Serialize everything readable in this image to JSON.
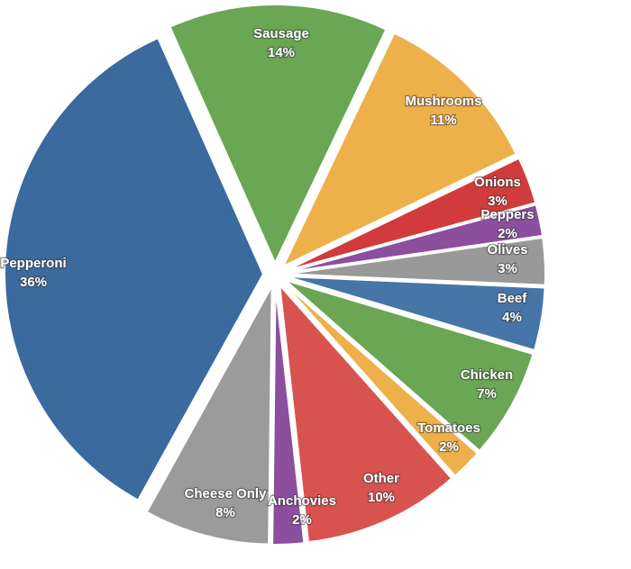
{
  "chart_data": {
    "type": "pie",
    "title": "",
    "exploded": true,
    "slices": [
      {
        "label": "Sausage",
        "value": 14,
        "value_label": "14%",
        "color": "#6aa653"
      },
      {
        "label": "Mushrooms",
        "value": 11,
        "value_label": "11%",
        "color": "#edb04b"
      },
      {
        "label": "Onions",
        "value": 3,
        "value_label": "3%",
        "color": "#d13b3b"
      },
      {
        "label": "Peppers",
        "value": 2,
        "value_label": "2%",
        "color": "#8b4f9e"
      },
      {
        "label": "Olives",
        "value": 3,
        "value_label": "3%",
        "color": "#999999"
      },
      {
        "label": "Beef",
        "value": 4,
        "value_label": "4%",
        "color": "#4675a8"
      },
      {
        "label": "Chicken",
        "value": 7,
        "value_label": "7%",
        "color": "#6aa653"
      },
      {
        "label": "Tomatoes",
        "value": 2,
        "value_label": "2%",
        "color": "#edb04b"
      },
      {
        "label": "Other",
        "value": 10,
        "value_label": "10%",
        "color": "#d85350"
      },
      {
        "label": "Anchovies",
        "value": 2,
        "value_label": "2%",
        "color": "#8b4f9e"
      },
      {
        "label": "Cheese Only",
        "value": 8,
        "value_label": "8%",
        "color": "#9b9b9b"
      },
      {
        "label": "Pepperoni",
        "value": 36,
        "value_label": "36%",
        "color": "#3a6a9e"
      }
    ]
  }
}
